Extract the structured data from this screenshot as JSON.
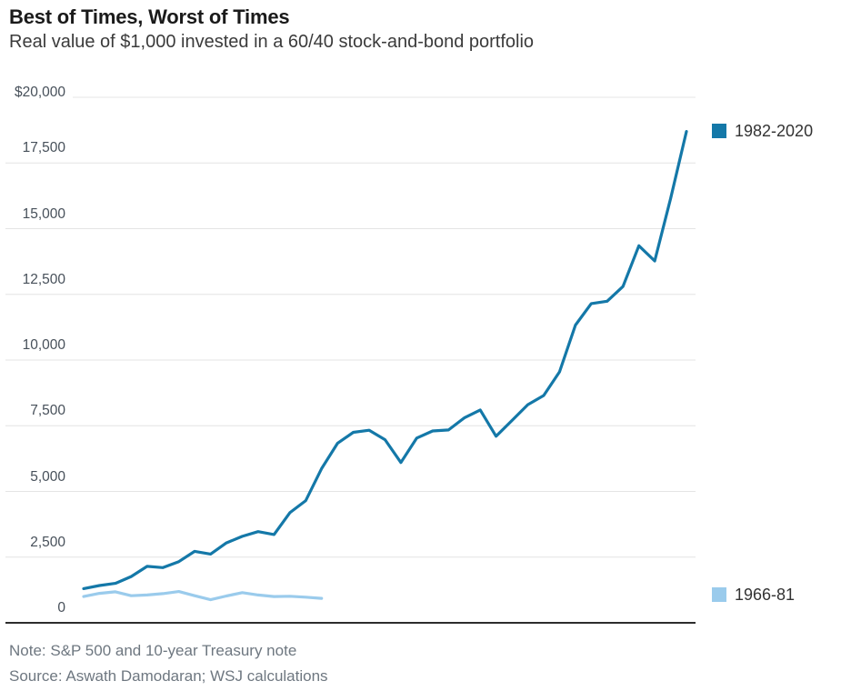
{
  "header": {
    "title": "Best of Times, Worst of Times",
    "subtitle": "Real value of $1,000 invested in a 60/40 stock-and-bond portfolio"
  },
  "footer": {
    "note": "Note: S&P 500 and 10-year Treasury note",
    "source": "Source: Aswath Damodaran; WSJ calculations"
  },
  "chart_data": {
    "type": "line",
    "title": "Best of Times, Worst of Times",
    "subtitle": "Real value of $1,000 invested in a 60/40 stock-and-bond portfolio",
    "xlabel": "",
    "ylabel": "",
    "ylim": [
      0,
      20000
    ],
    "grid": "horizontal",
    "x_axis_labels_shown": false,
    "legend_position": "right, beside each line end",
    "yticks": [
      {
        "value": 20000,
        "label": "$20,000"
      },
      {
        "value": 17500,
        "label": "17,500"
      },
      {
        "value": 15000,
        "label": "15,000"
      },
      {
        "value": 12500,
        "label": "12,500"
      },
      {
        "value": 10000,
        "label": "10,000"
      },
      {
        "value": 7500,
        "label": "7,500"
      },
      {
        "value": 5000,
        "label": "5,000"
      },
      {
        "value": 2500,
        "label": "2,500"
      },
      {
        "value": 0,
        "label": "0"
      }
    ],
    "legend": [
      {
        "label": "1982-2020",
        "color": "#1478a8"
      },
      {
        "label": "1966-81",
        "color": "#9acbec"
      }
    ],
    "series": [
      {
        "name": "1982-2020",
        "color": "#1478a8",
        "years": [
          1982,
          1983,
          1984,
          1985,
          1986,
          1987,
          1988,
          1989,
          1990,
          1991,
          1992,
          1993,
          1994,
          1995,
          1996,
          1997,
          1998,
          1999,
          2000,
          2001,
          2002,
          2003,
          2004,
          2005,
          2006,
          2007,
          2008,
          2009,
          2010,
          2011,
          2012,
          2013,
          2014,
          2015,
          2016,
          2017,
          2018,
          2019,
          2020
        ],
        "values": [
          1300,
          1420,
          1500,
          1760,
          2150,
          2100,
          2330,
          2720,
          2615,
          3040,
          3290,
          3470,
          3360,
          4190,
          4650,
          5870,
          6830,
          7250,
          7330,
          6970,
          6100,
          7030,
          7300,
          7340,
          7800,
          8100,
          7100,
          7700,
          8300,
          8650,
          9550,
          11330,
          12150,
          12240,
          12800,
          14350,
          13770,
          16150,
          18700
        ]
      },
      {
        "name": "1966-81",
        "color": "#9acbec",
        "years": [
          1966,
          1967,
          1968,
          1969,
          1970,
          1971,
          1972,
          1973,
          1974,
          1975,
          1976,
          1977,
          1978,
          1979,
          1980,
          1981
        ],
        "values": [
          1000,
          1120,
          1180,
          1030,
          1060,
          1110,
          1190,
          1030,
          880,
          1020,
          1150,
          1060,
          1000,
          1010,
          975,
          930
        ]
      }
    ],
    "colors": {
      "gridline": "#e4e4e4",
      "axis": "#2d2d2d",
      "series_dark": "#1478a8",
      "series_light": "#9acbec"
    }
  }
}
